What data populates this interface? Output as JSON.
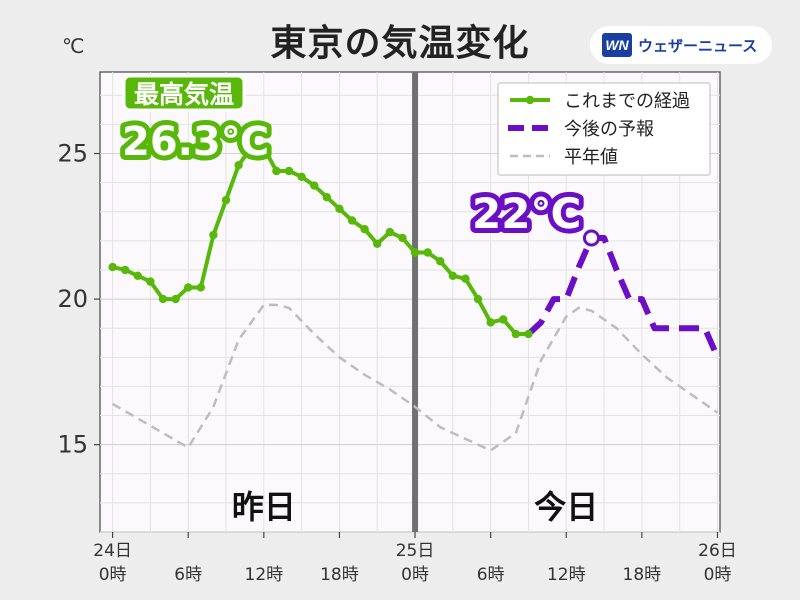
{
  "title": "東京の気温変化",
  "brand": {
    "mark": "WN",
    "name": "ウェザーニュース"
  },
  "chart_data": {
    "type": "line",
    "unit": "℃",
    "ylim": [
      12,
      27.8
    ],
    "xlim": [
      -1,
      48.2
    ],
    "yticks": [
      15,
      20,
      25
    ],
    "grid": true,
    "divider_x": 24,
    "xticks": [
      {
        "x": 0,
        "label1": "24日",
        "label2": "0時"
      },
      {
        "x": 6,
        "label1": "",
        "label2": "6時"
      },
      {
        "x": 12,
        "label1": "",
        "label2": "12時"
      },
      {
        "x": 18,
        "label1": "",
        "label2": "18時"
      },
      {
        "x": 24,
        "label1": "25日",
        "label2": "0時"
      },
      {
        "x": 30,
        "label1": "",
        "label2": "6時"
      },
      {
        "x": 36,
        "label1": "",
        "label2": "12時"
      },
      {
        "x": 42,
        "label1": "",
        "label2": "18時"
      },
      {
        "x": 48,
        "label1": "26日",
        "label2": "0時"
      }
    ],
    "day_labels": [
      {
        "x": 12,
        "text": "昨日"
      },
      {
        "x": 36,
        "text": "今日"
      }
    ],
    "legend": {
      "placement": "top-right",
      "entries": [
        "これまでの経過",
        "今後の予報",
        "平年値"
      ]
    },
    "colors": {
      "observed": "#58b80a",
      "forecast": "#6b0fc4",
      "normal": "#bdbdbd"
    },
    "series": [
      {
        "name": "これまでの経過",
        "style": "solid-marker",
        "x": [
          0,
          1,
          2,
          3,
          4,
          5,
          6,
          7,
          8,
          9,
          10,
          11,
          12,
          13,
          14,
          15,
          16,
          17,
          18,
          19,
          20,
          21,
          22,
          23,
          24,
          25,
          26,
          27,
          28,
          29,
          30,
          31,
          32,
          33
        ],
        "y": [
          21.1,
          21.0,
          20.8,
          20.6,
          20.0,
          20.0,
          20.4,
          20.4,
          22.2,
          23.4,
          24.6,
          25.2,
          25.2,
          24.4,
          24.4,
          24.2,
          23.9,
          23.5,
          23.1,
          22.7,
          22.4,
          21.9,
          22.3,
          22.1,
          21.6,
          21.6,
          21.3,
          20.8,
          20.7,
          20.0,
          19.2,
          19.3,
          18.8,
          18.8
        ]
      },
      {
        "name": "今後の予報",
        "style": "dashed",
        "x": [
          33,
          34,
          35,
          36,
          37,
          38,
          39,
          40,
          41,
          42,
          43,
          44,
          45,
          46,
          47,
          48
        ],
        "y": [
          18.8,
          19.2,
          20.0,
          20.0,
          21.1,
          22.1,
          22.1,
          21.0,
          20.0,
          20.0,
          19.0,
          19.0,
          19.0,
          19.0,
          19.0,
          18.0
        ]
      },
      {
        "name": "平年値",
        "style": "dashed-light",
        "x": [
          0,
          2,
          4,
          6,
          8,
          10,
          12,
          13,
          14,
          16,
          18,
          20,
          22,
          24,
          26,
          28,
          30,
          32,
          34,
          36,
          37,
          38,
          40,
          42,
          44,
          46,
          48
        ],
        "y": [
          16.4,
          15.9,
          15.4,
          14.9,
          16.3,
          18.6,
          19.8,
          19.8,
          19.7,
          18.8,
          18.0,
          17.4,
          16.9,
          16.3,
          15.6,
          15.2,
          14.8,
          15.4,
          17.9,
          19.4,
          19.7,
          19.6,
          19.0,
          18.1,
          17.3,
          16.7,
          16.1
        ]
      }
    ],
    "annotations": [
      {
        "kind": "max-badge",
        "label": "最高気温",
        "value": "26.3℃",
        "x": 12,
        "y": 25.2
      },
      {
        "kind": "forecast-max",
        "value": "22℃",
        "x": 38,
        "y": 22.1
      }
    ]
  }
}
